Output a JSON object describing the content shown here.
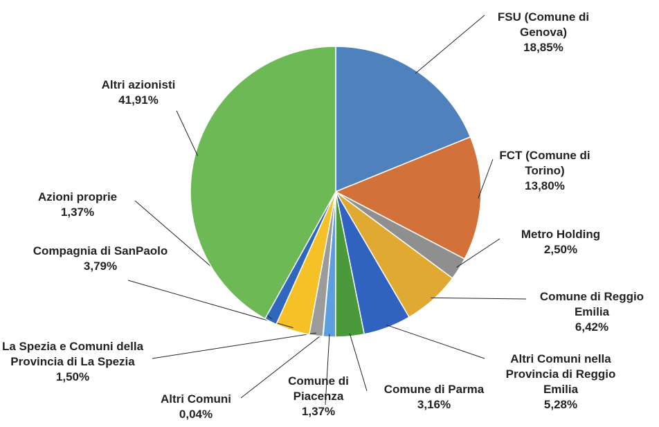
{
  "chart_data": {
    "type": "pie",
    "categories": [
      "FSU (Comune di Genova)",
      "FCT (Comune di Torino)",
      "Metro Holding",
      "Comune di Reggio Emilia",
      "Altri Comuni nella Provincia di Reggio Emilia",
      "Comune di Parma",
      "Comune di Piacenza",
      "Altri Comuni",
      "La Spezia e Comuni della Provincia di La Spezia",
      "Compagnia di SanPaolo",
      "Azioni proprie",
      "Altri azionisti"
    ],
    "values": [
      18.85,
      13.8,
      2.5,
      6.42,
      5.28,
      3.16,
      1.37,
      0.04,
      1.5,
      3.79,
      1.37,
      41.91
    ],
    "value_labels": [
      "18,85%",
      "13,80%",
      "2,50%",
      "6,42%",
      "5,28%",
      "3,16%",
      "1,37%",
      "0,04%",
      "1,50%",
      "3,79%",
      "1,37%",
      "41,91%"
    ],
    "colors": [
      "#4f81bd",
      "#d2713a",
      "#8f8f8f",
      "#e0a932",
      "#3062c0",
      "#4a9a3b",
      "#5b9fe0",
      "#c0622a",
      "#9b9b9b",
      "#f6c127",
      "#2f67bd",
      "#6db955"
    ]
  }
}
